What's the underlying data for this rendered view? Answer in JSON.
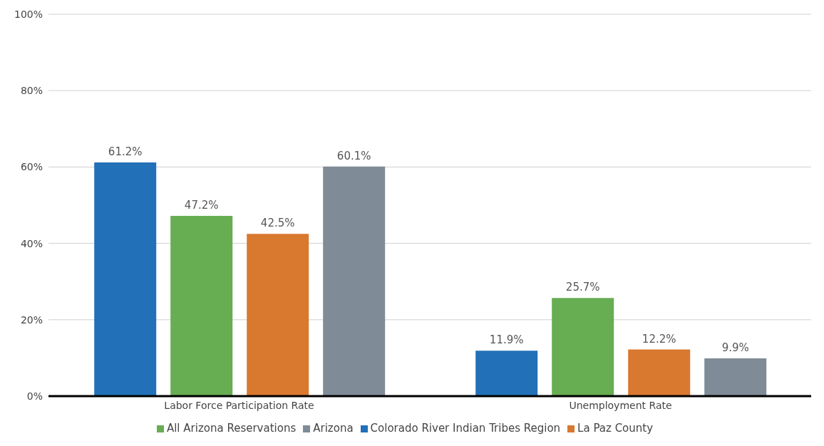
{
  "chart_data": {
    "type": "bar",
    "categories": [
      "Labor Force Participation Rate",
      "Unemployment Rate"
    ],
    "series": [
      {
        "name": "Colorado River Indian Tribes Region",
        "color": "#2270b8",
        "values": [
          61.2,
          11.9
        ],
        "value_labels": [
          "61.2%",
          "11.9%"
        ]
      },
      {
        "name": "All Arizona Reservations",
        "color": "#67ad52",
        "values": [
          47.2,
          25.7
        ],
        "value_labels": [
          "47.2%",
          "25.7%"
        ]
      },
      {
        "name": "La Paz County",
        "color": "#d9782f",
        "values": [
          42.5,
          12.2
        ],
        "value_labels": [
          "42.5%",
          "12.2%"
        ]
      },
      {
        "name": "Arizona",
        "color": "#7f8b96",
        "values": [
          60.1,
          9.9
        ],
        "value_labels": [
          "60.1%",
          "9.9%"
        ]
      }
    ],
    "ylim": [
      0,
      100
    ],
    "yticks": [
      {
        "value": 0,
        "label": "0%"
      },
      {
        "value": 20,
        "label": "20%"
      },
      {
        "value": 40,
        "label": "40%"
      },
      {
        "value": 60,
        "label": "60%"
      },
      {
        "value": 80,
        "label": "80%"
      },
      {
        "value": 100,
        "label": "100%"
      }
    ],
    "grid": "y",
    "legend": "bottom"
  }
}
